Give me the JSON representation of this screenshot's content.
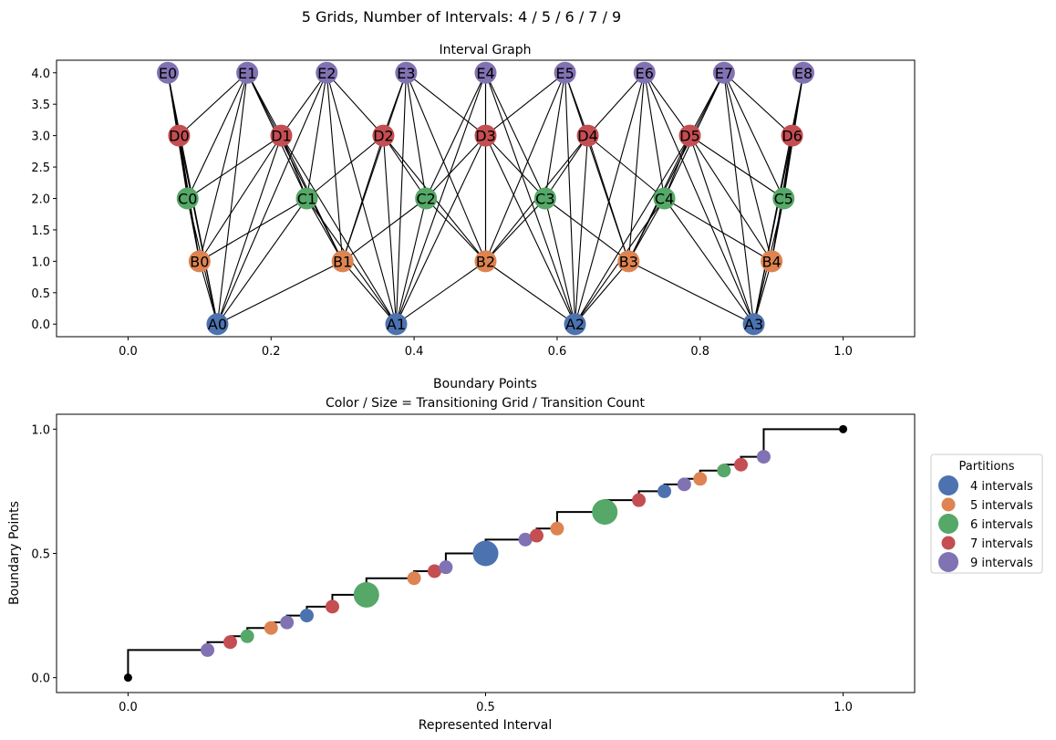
{
  "suptitle": "5 Grids, Number of Intervals: 4 / 5 / 6 / 7 / 9",
  "colors": {
    "grid_4": "#4c72b0",
    "grid_5": "#dd8452",
    "grid_6": "#55a868",
    "grid_7": "#c44e52",
    "grid_9": "#8172b3",
    "edge": "#000000",
    "endpoint": "#000000"
  },
  "chart_data": [
    {
      "type": "network",
      "title": "Interval Graph",
      "xlim": [
        -0.1,
        1.1
      ],
      "ylim": [
        -0.2,
        4.2
      ],
      "x_ticks": [
        "0.0",
        "0.2",
        "0.4",
        "0.6",
        "0.8",
        "1.0"
      ],
      "x_tick_values": [
        0.0,
        0.2,
        0.4,
        0.6,
        0.8,
        1.0
      ],
      "y_ticks": [
        "0.0",
        "0.5",
        "1.0",
        "1.5",
        "2.0",
        "2.5",
        "3.0",
        "3.5",
        "4.0"
      ],
      "y_tick_values": [
        0.0,
        0.5,
        1.0,
        1.5,
        2.0,
        2.5,
        3.0,
        3.5,
        4.0
      ],
      "nodes": [
        {
          "id": "A0",
          "x": 0.125,
          "y": 0,
          "group": "grid_4"
        },
        {
          "id": "A1",
          "x": 0.375,
          "y": 0,
          "group": "grid_4"
        },
        {
          "id": "A2",
          "x": 0.625,
          "y": 0,
          "group": "grid_4"
        },
        {
          "id": "A3",
          "x": 0.875,
          "y": 0,
          "group": "grid_4"
        },
        {
          "id": "B0",
          "x": 0.1,
          "y": 1,
          "group": "grid_5"
        },
        {
          "id": "B1",
          "x": 0.3,
          "y": 1,
          "group": "grid_5"
        },
        {
          "id": "B2",
          "x": 0.5,
          "y": 1,
          "group": "grid_5"
        },
        {
          "id": "B3",
          "x": 0.7,
          "y": 1,
          "group": "grid_5"
        },
        {
          "id": "B4",
          "x": 0.9,
          "y": 1,
          "group": "grid_5"
        },
        {
          "id": "C0",
          "x": 0.0833,
          "y": 2,
          "group": "grid_6"
        },
        {
          "id": "C1",
          "x": 0.25,
          "y": 2,
          "group": "grid_6"
        },
        {
          "id": "C2",
          "x": 0.4167,
          "y": 2,
          "group": "grid_6"
        },
        {
          "id": "C3",
          "x": 0.5833,
          "y": 2,
          "group": "grid_6"
        },
        {
          "id": "C4",
          "x": 0.75,
          "y": 2,
          "group": "grid_6"
        },
        {
          "id": "C5",
          "x": 0.9167,
          "y": 2,
          "group": "grid_6"
        },
        {
          "id": "D0",
          "x": 0.0714,
          "y": 3,
          "group": "grid_7"
        },
        {
          "id": "D1",
          "x": 0.2143,
          "y": 3,
          "group": "grid_7"
        },
        {
          "id": "D2",
          "x": 0.3571,
          "y": 3,
          "group": "grid_7"
        },
        {
          "id": "D3",
          "x": 0.5,
          "y": 3,
          "group": "grid_7"
        },
        {
          "id": "D4",
          "x": 0.6429,
          "y": 3,
          "group": "grid_7"
        },
        {
          "id": "D5",
          "x": 0.7857,
          "y": 3,
          "group": "grid_7"
        },
        {
          "id": "D6",
          "x": 0.9286,
          "y": 3,
          "group": "grid_7"
        },
        {
          "id": "E0",
          "x": 0.0556,
          "y": 4,
          "group": "grid_9"
        },
        {
          "id": "E1",
          "x": 0.1667,
          "y": 4,
          "group": "grid_9"
        },
        {
          "id": "E2",
          "x": 0.2778,
          "y": 4,
          "group": "grid_9"
        },
        {
          "id": "E3",
          "x": 0.3889,
          "y": 4,
          "group": "grid_9"
        },
        {
          "id": "E4",
          "x": 0.5,
          "y": 4,
          "group": "grid_9"
        },
        {
          "id": "E5",
          "x": 0.6111,
          "y": 4,
          "group": "grid_9"
        },
        {
          "id": "E6",
          "x": 0.7222,
          "y": 4,
          "group": "grid_9"
        },
        {
          "id": "E7",
          "x": 0.8333,
          "y": 4,
          "group": "grid_9"
        },
        {
          "id": "E8",
          "x": 0.9444,
          "y": 4,
          "group": "grid_9"
        }
      ]
    },
    {
      "type": "scatter",
      "title": "Boundary Points",
      "subtitle": "Color / Size = Transitioning Grid / Transition Count",
      "xlabel": "Represented Interval",
      "ylabel": "Boundary Points",
      "xlim": [
        -0.1,
        1.1
      ],
      "ylim": [
        -0.06,
        1.06
      ],
      "x_ticks": [
        "0.0",
        "0.5",
        "1.0"
      ],
      "x_tick_values": [
        0.0,
        0.5,
        1.0
      ],
      "y_ticks": [
        "0.0",
        "0.5",
        "1.0"
      ],
      "y_tick_values": [
        0.0,
        0.5,
        1.0
      ],
      "legend": {
        "title": "Partitions",
        "placement": "right, outside",
        "entries": [
          {
            "label": "4 intervals",
            "group": "grid_4"
          },
          {
            "label": "5 intervals",
            "group": "grid_5"
          },
          {
            "label": "6 intervals",
            "group": "grid_6"
          },
          {
            "label": "7 intervals",
            "group": "grid_7"
          },
          {
            "label": "9 intervals",
            "group": "grid_9"
          }
        ]
      },
      "endpoints": [
        {
          "x": 0.0,
          "y": 0.0
        },
        {
          "x": 1.0,
          "y": 1.0
        }
      ],
      "points": [
        {
          "x": 0.1111,
          "y": 0.1111,
          "group": "grid_9",
          "count": 1
        },
        {
          "x": 0.1429,
          "y": 0.1429,
          "group": "grid_7",
          "count": 1
        },
        {
          "x": 0.1667,
          "y": 0.1667,
          "group": "grid_6",
          "count": 1
        },
        {
          "x": 0.2,
          "y": 0.2,
          "group": "grid_5",
          "count": 1
        },
        {
          "x": 0.2222,
          "y": 0.2222,
          "group": "grid_9",
          "count": 1
        },
        {
          "x": 0.25,
          "y": 0.25,
          "group": "grid_4",
          "count": 1
        },
        {
          "x": 0.2857,
          "y": 0.2857,
          "group": "grid_7",
          "count": 1
        },
        {
          "x": 0.3333,
          "y": 0.3333,
          "group": "grid_6",
          "count": 2
        },
        {
          "x": 0.4,
          "y": 0.4,
          "group": "grid_5",
          "count": 1
        },
        {
          "x": 0.4286,
          "y": 0.4286,
          "group": "grid_7",
          "count": 1
        },
        {
          "x": 0.4444,
          "y": 0.4444,
          "group": "grid_9",
          "count": 1
        },
        {
          "x": 0.5,
          "y": 0.5,
          "group": "grid_4",
          "count": 2
        },
        {
          "x": 0.5556,
          "y": 0.5556,
          "group": "grid_9",
          "count": 1
        },
        {
          "x": 0.5714,
          "y": 0.5714,
          "group": "grid_7",
          "count": 1
        },
        {
          "x": 0.6,
          "y": 0.6,
          "group": "grid_5",
          "count": 1
        },
        {
          "x": 0.6667,
          "y": 0.6667,
          "group": "grid_6",
          "count": 2
        },
        {
          "x": 0.7143,
          "y": 0.7143,
          "group": "grid_7",
          "count": 1
        },
        {
          "x": 0.75,
          "y": 0.75,
          "group": "grid_4",
          "count": 1
        },
        {
          "x": 0.7778,
          "y": 0.7778,
          "group": "grid_9",
          "count": 1
        },
        {
          "x": 0.8,
          "y": 0.8,
          "group": "grid_5",
          "count": 1
        },
        {
          "x": 0.8333,
          "y": 0.8333,
          "group": "grid_6",
          "count": 1
        },
        {
          "x": 0.8571,
          "y": 0.8571,
          "group": "grid_7",
          "count": 1
        },
        {
          "x": 0.8889,
          "y": 0.8889,
          "group": "grid_9",
          "count": 1
        }
      ]
    }
  ]
}
